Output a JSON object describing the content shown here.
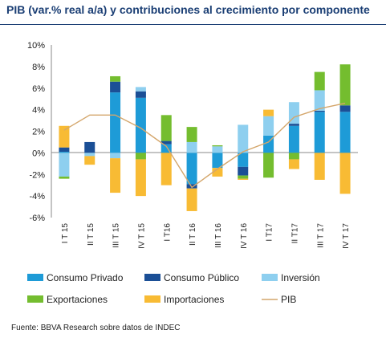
{
  "title": "PIB (var.% real a/a) y contribuciones al crecimiento por componente",
  "source": "Fuente: BBVA Research sobre datos de INDEC",
  "chart_data": {
    "type": "bar",
    "stacked": true,
    "title": "PIB (var.% real a/a) y contribuciones al crecimiento por componente",
    "categories": [
      "I T 15",
      "II T 15",
      "III T 15",
      "IV T 15",
      "I T16",
      "II T 16",
      "III T 16",
      "IV T 16",
      "I T17",
      "II T17",
      "III T 17",
      "IV T 17"
    ],
    "ylim": [
      -6,
      10
    ],
    "yticks": [
      "10%",
      "8%",
      "6%",
      "4%",
      "2%",
      "0%",
      "-2%",
      "-4%",
      "-6%"
    ],
    "grid": false,
    "legend_position": "bottom",
    "series": [
      {
        "name": "Consumo Privado",
        "color": "#1e9bd7",
        "values": [
          0.1,
          0.0,
          5.6,
          5.1,
          0.8,
          -2.9,
          -1.4,
          -1.3,
          1.6,
          2.5,
          3.8,
          3.8
        ]
      },
      {
        "name": "Consumo Público",
        "color": "#1b4f96",
        "values": [
          0.4,
          1.0,
          1.0,
          0.6,
          0.3,
          -0.4,
          0.0,
          -0.8,
          0.0,
          0.2,
          0.1,
          0.6
        ]
      },
      {
        "name": "Inversión",
        "color": "#8ecfef",
        "values": [
          -2.2,
          -0.3,
          -0.5,
          0.4,
          0.0,
          1.0,
          0.6,
          2.6,
          1.8,
          2.0,
          1.9,
          0.0
        ]
      },
      {
        "name": "Exportaciones",
        "color": "#74bd2f",
        "values": [
          -0.2,
          0.0,
          0.5,
          -0.6,
          2.4,
          1.4,
          0.1,
          -0.3,
          -2.3,
          -0.6,
          1.7,
          3.8
        ]
      },
      {
        "name": "Importaciones",
        "color": "#f8bb34",
        "values": [
          2.0,
          -0.8,
          -3.2,
          -3.4,
          -3.0,
          -2.1,
          -0.8,
          -0.1,
          0.6,
          -0.9,
          -2.5,
          -3.8
        ]
      }
    ],
    "line": {
      "name": "PIB",
      "color": "#d4a66b",
      "values": [
        2.1,
        3.5,
        3.5,
        2.3,
        0.6,
        -3.2,
        -1.5,
        0.1,
        1.0,
        3.3,
        4.1,
        4.6
      ]
    }
  }
}
